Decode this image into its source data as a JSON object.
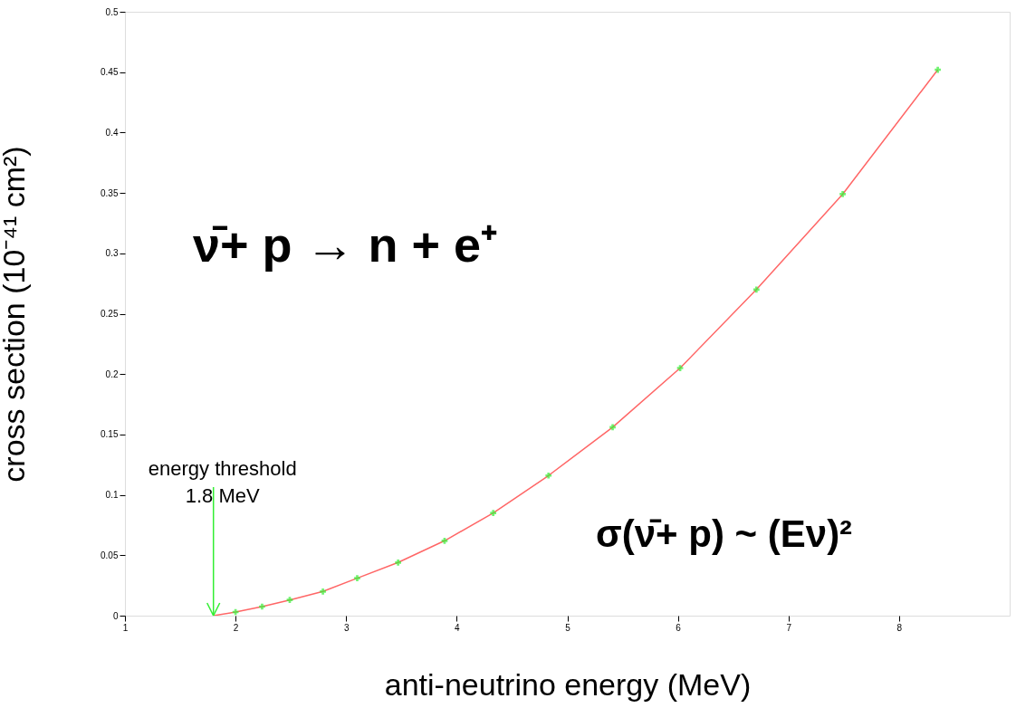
{
  "chart_data": {
    "type": "line",
    "xlabel": "anti-neutrino energy (MeV)",
    "ylabel": "cross section (10⁻⁴¹ cm²)",
    "xlim": [
      1,
      9
    ],
    "xticks": [
      1,
      2,
      3,
      4,
      5,
      6,
      7,
      8
    ],
    "ylim": [
      0,
      0.5
    ],
    "yticks": [
      0,
      0.05,
      0.1,
      0.15,
      0.2,
      0.25,
      0.3,
      0.35,
      0.4,
      0.45,
      0.5
    ],
    "grid": false,
    "series": [
      {
        "type": "line",
        "color": "#ff6666",
        "line_style": "solid",
        "marker": "none",
        "x": [
          1.8,
          2.0,
          2.24,
          2.49,
          2.79,
          3.1,
          3.47,
          3.89,
          4.33,
          4.83,
          5.41,
          6.02,
          6.71,
          7.49,
          8.35
        ],
        "values": [
          0,
          0.003,
          0.0075,
          0.013,
          0.02,
          0.031,
          0.044,
          0.062,
          0.085,
          0.116,
          0.156,
          0.205,
          0.27,
          0.349,
          0.452
        ]
      },
      {
        "type": "scatter",
        "color": "#33ee33",
        "marker": "cross",
        "x": [
          2.0,
          2.24,
          2.49,
          2.79,
          3.1,
          3.47,
          3.89,
          4.33,
          4.83,
          5.41,
          6.02,
          6.71,
          7.49,
          8.35
        ],
        "values": [
          0.003,
          0.0075,
          0.013,
          0.02,
          0.031,
          0.044,
          0.062,
          0.085,
          0.116,
          0.156,
          0.205,
          0.27,
          0.349,
          0.452
        ]
      }
    ],
    "annotations": [
      {
        "text": "energy threshold\n1.8 MeV",
        "x": 1.8,
        "y": 0
      },
      "ν̄+ p → n + e⁺",
      "σ(ν̄+ p) ~ (Eν)²"
    ]
  }
}
